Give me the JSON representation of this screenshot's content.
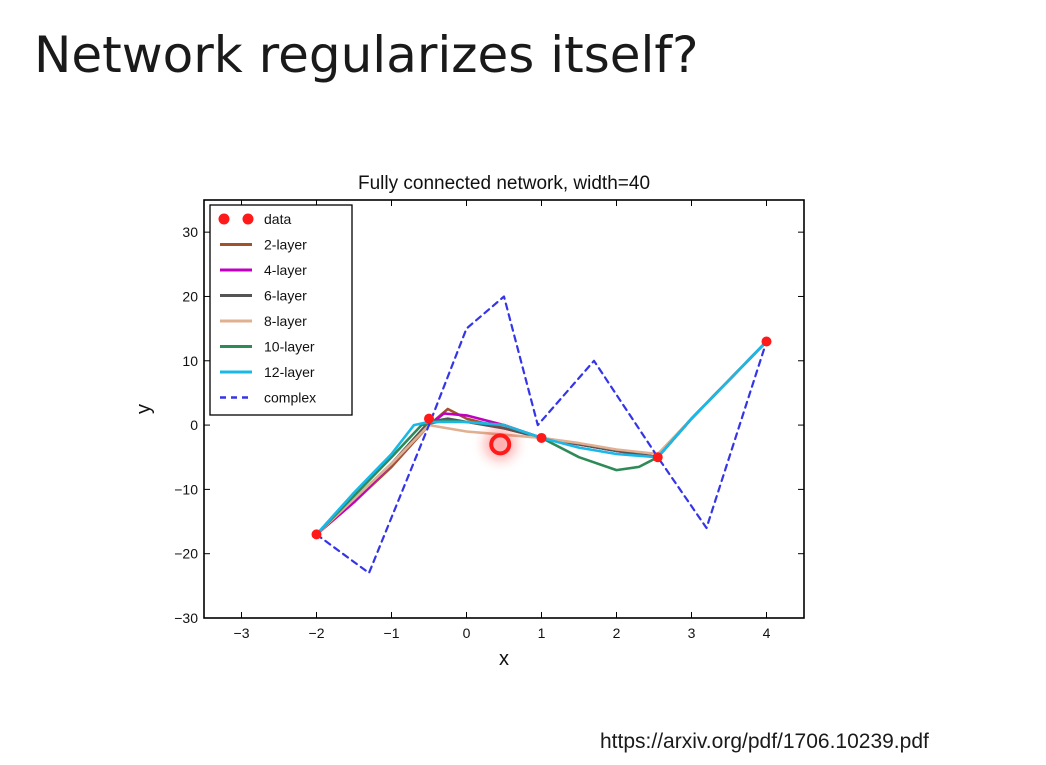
{
  "slide": {
    "title": "Network regularizes itself?",
    "source": "https://arxiv.org/pdf/1706.10239.pdf"
  },
  "chart_data": {
    "type": "line",
    "title": "Fully connected network, width=40",
    "xlabel": "x",
    "ylabel": "y",
    "xlim": [
      -3.5,
      4.5
    ],
    "ylim": [
      -30,
      35
    ],
    "xticks": [
      -3,
      -2,
      -1,
      0,
      1,
      2,
      3,
      4
    ],
    "yticks": [
      -30,
      -20,
      -10,
      0,
      10,
      20,
      30
    ],
    "xtick_labels": [
      "−3",
      "−2",
      "−1",
      "0",
      "1",
      "2",
      "3",
      "4"
    ],
    "ytick_labels": [
      "−30",
      "−20",
      "−10",
      "0",
      "10",
      "20",
      "30"
    ],
    "grid": false,
    "legend_position": "top-left",
    "data_points": {
      "name": "data",
      "color": "#ff1a1a",
      "x": [
        -2,
        -0.5,
        0.45,
        1,
        2.55,
        4
      ],
      "y": [
        -17,
        1,
        -3,
        -2,
        -5,
        13
      ],
      "highlighted_index": 2
    },
    "series": [
      {
        "name": "2-layer",
        "color": "#a0522d",
        "dashed": false,
        "x": [
          -2,
          -1.5,
          -1,
          -0.5,
          -0.25,
          0,
          0.5,
          1,
          1.5,
          2,
          2.55,
          3,
          3.5,
          4
        ],
        "y": [
          -17,
          -12,
          -6.5,
          0,
          2.5,
          1,
          -0.5,
          -2,
          -3,
          -4,
          -5,
          1,
          7,
          13
        ]
      },
      {
        "name": "4-layer",
        "color": "#c000c0",
        "dashed": false,
        "x": [
          -2,
          -1.5,
          -1,
          -0.5,
          -0.3,
          0,
          0.5,
          1,
          1.5,
          2,
          2.55,
          3,
          3.5,
          4
        ],
        "y": [
          -17,
          -12,
          -6,
          0,
          1.8,
          1.5,
          0,
          -2,
          -3,
          -4,
          -5,
          1,
          7,
          13
        ]
      },
      {
        "name": "6-layer",
        "color": "#555555",
        "dashed": false,
        "x": [
          -2,
          -1.5,
          -1,
          -0.5,
          -0.25,
          0,
          0.5,
          1,
          1.5,
          2,
          2.55,
          3,
          3.5,
          4
        ],
        "y": [
          -17,
          -11.5,
          -6,
          0.5,
          1,
          0.5,
          -0.5,
          -2,
          -3,
          -4,
          -5,
          1,
          7,
          13
        ]
      },
      {
        "name": "8-layer",
        "color": "#e0b090",
        "dashed": false,
        "x": [
          -2,
          -1.5,
          -1,
          -0.5,
          0,
          0.5,
          1,
          1.5,
          2,
          2.55,
          3,
          3.5,
          4
        ],
        "y": [
          -17,
          -11.5,
          -6,
          0,
          -1,
          -1.5,
          -2,
          -2.8,
          -3.8,
          -4.5,
          1,
          7,
          13
        ]
      },
      {
        "name": "10-layer",
        "color": "#2e8b57",
        "dashed": false,
        "x": [
          -2,
          -1.5,
          -1,
          -0.6,
          -0.3,
          0,
          0.5,
          1,
          1.5,
          2,
          2.3,
          2.55,
          3,
          3.5,
          4
        ],
        "y": [
          -17,
          -11,
          -5,
          0,
          0.7,
          0.5,
          0,
          -2,
          -5,
          -7,
          -6.5,
          -5,
          1,
          7,
          13
        ]
      },
      {
        "name": "12-layer",
        "color": "#1ab8e8",
        "dashed": false,
        "x": [
          -2,
          -1.5,
          -1,
          -0.7,
          -0.5,
          0,
          0.5,
          1,
          1.5,
          2,
          2.55,
          3,
          3.5,
          4
        ],
        "y": [
          -17,
          -10.5,
          -4.5,
          0,
          0.5,
          0.5,
          0,
          -2,
          -3.5,
          -4.5,
          -5,
          1,
          7,
          13
        ]
      },
      {
        "name": "complex",
        "color": "#3535e8",
        "dashed": true,
        "x": [
          -2,
          -1.3,
          -0.5,
          0,
          0.5,
          0.95,
          1.7,
          2.55,
          3.2,
          4
        ],
        "y": [
          -17,
          -23,
          0,
          15,
          20,
          0,
          10,
          -5,
          -16,
          13
        ]
      }
    ]
  }
}
